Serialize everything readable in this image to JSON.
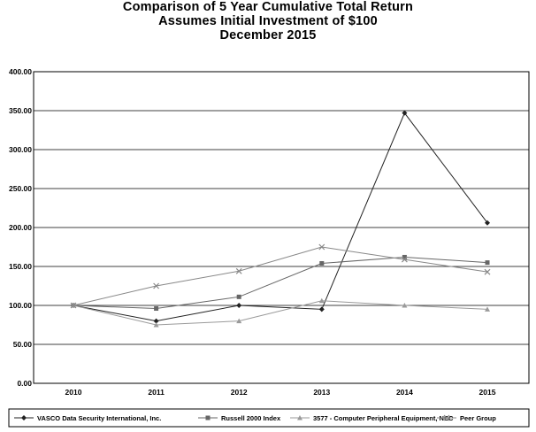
{
  "chart_data": {
    "type": "line",
    "title_lines": [
      "Comparison of 5 Year Cumulative Total Return",
      "Assumes Initial Investment of $100",
      "December 2015"
    ],
    "categories": [
      "2010",
      "2011",
      "2012",
      "2013",
      "2014",
      "2015"
    ],
    "ylim": [
      0,
      400
    ],
    "y_ticks": [
      "0.00",
      "50.00",
      "100.00",
      "150.00",
      "200.00",
      "250.00",
      "300.00",
      "350.00",
      "400.00"
    ],
    "grid": true,
    "legend_position": "bottom",
    "series": [
      {
        "name": "VASCO Data Security International, Inc.",
        "values": [
          100,
          80,
          100,
          95,
          347,
          206
        ],
        "color": "#222222",
        "marker": "diamond"
      },
      {
        "name": "Russell 2000 Index",
        "values": [
          100,
          96,
          111,
          154,
          162,
          155
        ],
        "color": "#666666",
        "marker": "square"
      },
      {
        "name": "3577 - Computer Peripheral Equipment, NEC",
        "values": [
          100,
          75,
          80,
          106,
          100,
          95
        ],
        "color": "#9a9a9a",
        "marker": "triangle"
      },
      {
        "name": "Peer Group",
        "values": [
          100,
          125,
          144,
          175,
          159,
          143
        ],
        "color": "#888888",
        "marker": "x"
      }
    ]
  }
}
